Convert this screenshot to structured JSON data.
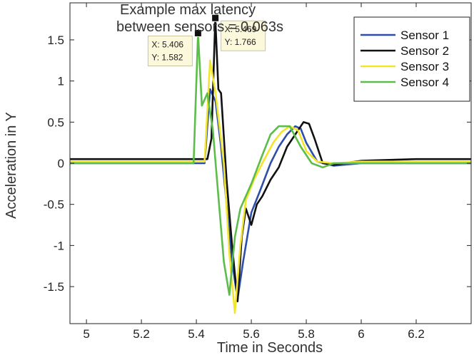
{
  "chart_data": {
    "type": "line",
    "title_lines": [
      "Example max latency",
      "between sensors = 0.063s"
    ],
    "xlabel": "Time in Seconds",
    "ylabel": "Acceleration in Y",
    "xlim": [
      4.94,
      6.4
    ],
    "ylim": [
      -1.95,
      1.95
    ],
    "x_ticks": [
      5,
      5.2,
      5.4,
      5.6,
      5.8,
      6,
      6.2
    ],
    "x_tick_labels": [
      "5",
      "5.2",
      "5.4",
      "5.6",
      "5.8",
      "6",
      "6.2"
    ],
    "y_ticks": [
      1.5,
      1,
      0.5,
      0,
      -0.5,
      -1,
      -1.5
    ],
    "y_tick_labels": [
      "1.5",
      "1",
      "0.5",
      "0",
      "-0.5",
      "-1",
      "-1.5"
    ],
    "grid": false,
    "legend_position": "top-right",
    "series": [
      {
        "name": "Sensor 1",
        "color": "#2e4fa8",
        "x": [
          4.94,
          5.2,
          5.4,
          5.43,
          5.45,
          5.47,
          5.49,
          5.51,
          5.53,
          5.55,
          5.57,
          5.6,
          5.63,
          5.67,
          5.7,
          5.73,
          5.76,
          5.78,
          5.8,
          5.84,
          5.9,
          6.0,
          6.2,
          6.4
        ],
        "y": [
          0.0,
          0.0,
          0.0,
          0.0,
          0.9,
          0.75,
          0.2,
          -0.5,
          -1.2,
          -1.65,
          -1.2,
          -0.6,
          -0.35,
          0.0,
          0.2,
          0.35,
          0.45,
          0.42,
          0.25,
          0.02,
          -0.03,
          0.0,
          0.0,
          0.0
        ]
      },
      {
        "name": "Sensor 2",
        "color": "#111111",
        "x": [
          4.94,
          5.2,
          5.4,
          5.44,
          5.455,
          5.469,
          5.48,
          5.49,
          5.51,
          5.53,
          5.55,
          5.565,
          5.58,
          5.6,
          5.62,
          5.64,
          5.67,
          5.7,
          5.73,
          5.76,
          5.79,
          5.81,
          5.83,
          5.86,
          5.9,
          6.0,
          6.2,
          6.4
        ],
        "y": [
          0.05,
          0.05,
          0.05,
          0.05,
          0.3,
          1.766,
          0.9,
          0.85,
          -0.2,
          -1.0,
          -1.68,
          -0.9,
          -0.55,
          -0.75,
          -0.5,
          -0.4,
          -0.2,
          -0.05,
          0.2,
          0.35,
          0.5,
          0.48,
          0.3,
          0.0,
          -0.02,
          0.03,
          0.05,
          0.05
        ]
      },
      {
        "name": "Sensor 3",
        "color": "#f2e52c",
        "x": [
          4.94,
          5.2,
          5.41,
          5.43,
          5.45,
          5.47,
          5.5,
          5.52,
          5.54,
          5.56,
          5.58,
          5.61,
          5.64,
          5.68,
          5.71,
          5.74,
          5.77,
          5.8,
          5.84,
          5.9,
          6.0,
          6.2,
          6.4
        ],
        "y": [
          0.02,
          0.02,
          0.02,
          0.02,
          1.25,
          0.85,
          0.0,
          -1.1,
          -1.82,
          -1.0,
          -0.45,
          -0.2,
          0.0,
          0.25,
          0.38,
          0.45,
          0.4,
          0.15,
          0.02,
          0.0,
          0.02,
          0.02,
          0.02
        ]
      },
      {
        "name": "Sensor 4",
        "color": "#5cbd4a",
        "x": [
          4.94,
          5.2,
          5.39,
          5.406,
          5.42,
          5.44,
          5.46,
          5.48,
          5.5,
          5.52,
          5.54,
          5.56,
          5.6,
          5.64,
          5.67,
          5.7,
          5.74,
          5.78,
          5.82,
          5.86,
          5.9,
          6.0,
          6.2,
          6.4
        ],
        "y": [
          0.0,
          0.0,
          0.0,
          1.582,
          0.7,
          0.85,
          0.4,
          -0.4,
          -1.2,
          -1.6,
          -0.9,
          -0.55,
          -0.25,
          0.1,
          0.35,
          0.45,
          0.45,
          0.2,
          0.0,
          -0.05,
          0.0,
          0.0,
          0.0,
          0.0
        ]
      }
    ],
    "data_tips": [
      {
        "x": 5.406,
        "y": 1.582,
        "x_text": "X: 5.406",
        "y_text": "Y: 1.582",
        "placement": "left"
      },
      {
        "x": 5.469,
        "y": 1.766,
        "x_text": "X: 5.469",
        "y_text": "Y: 1.766",
        "placement": "right"
      }
    ]
  }
}
